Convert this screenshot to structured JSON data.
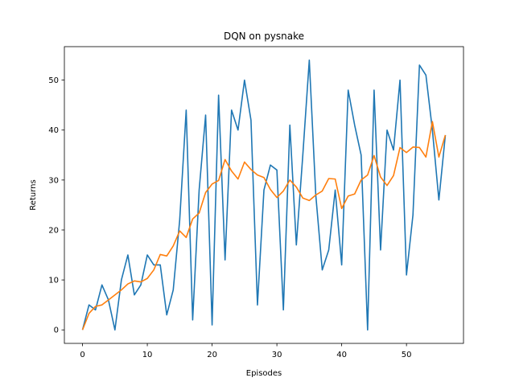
{
  "chart_data": {
    "type": "line",
    "title": "DQN on pysnake",
    "xlabel": "Episodes",
    "ylabel": "Returns",
    "xlim": [
      -2.8,
      58.8
    ],
    "ylim": [
      -2.7,
      56.7
    ],
    "xticks": [
      0,
      10,
      20,
      30,
      40,
      50
    ],
    "yticks": [
      0,
      10,
      20,
      30,
      40,
      50
    ],
    "grid": false,
    "series": [
      {
        "color": "#1f77b4",
        "x": [
          0,
          1,
          2,
          3,
          4,
          5,
          6,
          7,
          8,
          9,
          10,
          11,
          12,
          13,
          14,
          15,
          16,
          17,
          18,
          19,
          20,
          21,
          22,
          23,
          24,
          25,
          26,
          27,
          28,
          29,
          30,
          31,
          32,
          33,
          34,
          35,
          36,
          37,
          38,
          39,
          40,
          41,
          42,
          43,
          44,
          45,
          46,
          47,
          48,
          49,
          50,
          51,
          52,
          53,
          54,
          55,
          56
        ],
        "values": [
          0,
          5,
          4,
          9,
          6,
          0,
          10,
          15,
          7,
          9,
          15,
          13,
          13,
          3,
          8,
          22,
          44,
          2,
          28,
          43,
          1,
          47,
          14,
          44,
          40,
          50,
          42,
          5,
          28,
          33,
          32,
          4,
          41,
          17,
          35,
          54,
          27,
          12,
          16,
          28,
          13,
          48,
          41,
          35,
          0,
          48,
          16,
          40,
          36,
          50,
          11,
          23,
          53,
          51,
          40,
          26,
          39
        ]
      },
      {
        "color": "#ff7f0e",
        "x": [
          0,
          1,
          2,
          3,
          4,
          5,
          6,
          7,
          8,
          9,
          10,
          11,
          12,
          13,
          14,
          15,
          16,
          17,
          18,
          19,
          20,
          21,
          22,
          23,
          24,
          25,
          26,
          27,
          28,
          29,
          30,
          31,
          32,
          33,
          34,
          35,
          36,
          37,
          38,
          39,
          40,
          41,
          42,
          43,
          44,
          45,
          46,
          47,
          48,
          49,
          50,
          51,
          52,
          53,
          54,
          55,
          56
        ],
        "values": [
          0,
          3.3,
          4.7,
          5,
          6,
          7,
          8,
          9.2,
          9.8,
          9.6,
          10.3,
          12,
          15.1,
          14.8,
          16.8,
          19.8,
          18.5,
          22.2,
          23.4,
          27.5,
          29.2,
          29.9,
          34.1,
          31.8,
          30.2,
          33.6,
          32.1,
          31,
          30.5,
          28.1,
          26.5,
          27.8,
          30,
          28.6,
          26.4,
          25.9,
          27,
          27.8,
          30.3,
          30.2,
          24.3,
          26.8,
          27.2,
          30,
          31,
          34.9,
          30.6,
          28.9,
          30.9,
          36.5,
          35.5,
          36.6,
          36.5,
          34.6,
          41.7,
          34.6,
          39
        ]
      }
    ]
  }
}
